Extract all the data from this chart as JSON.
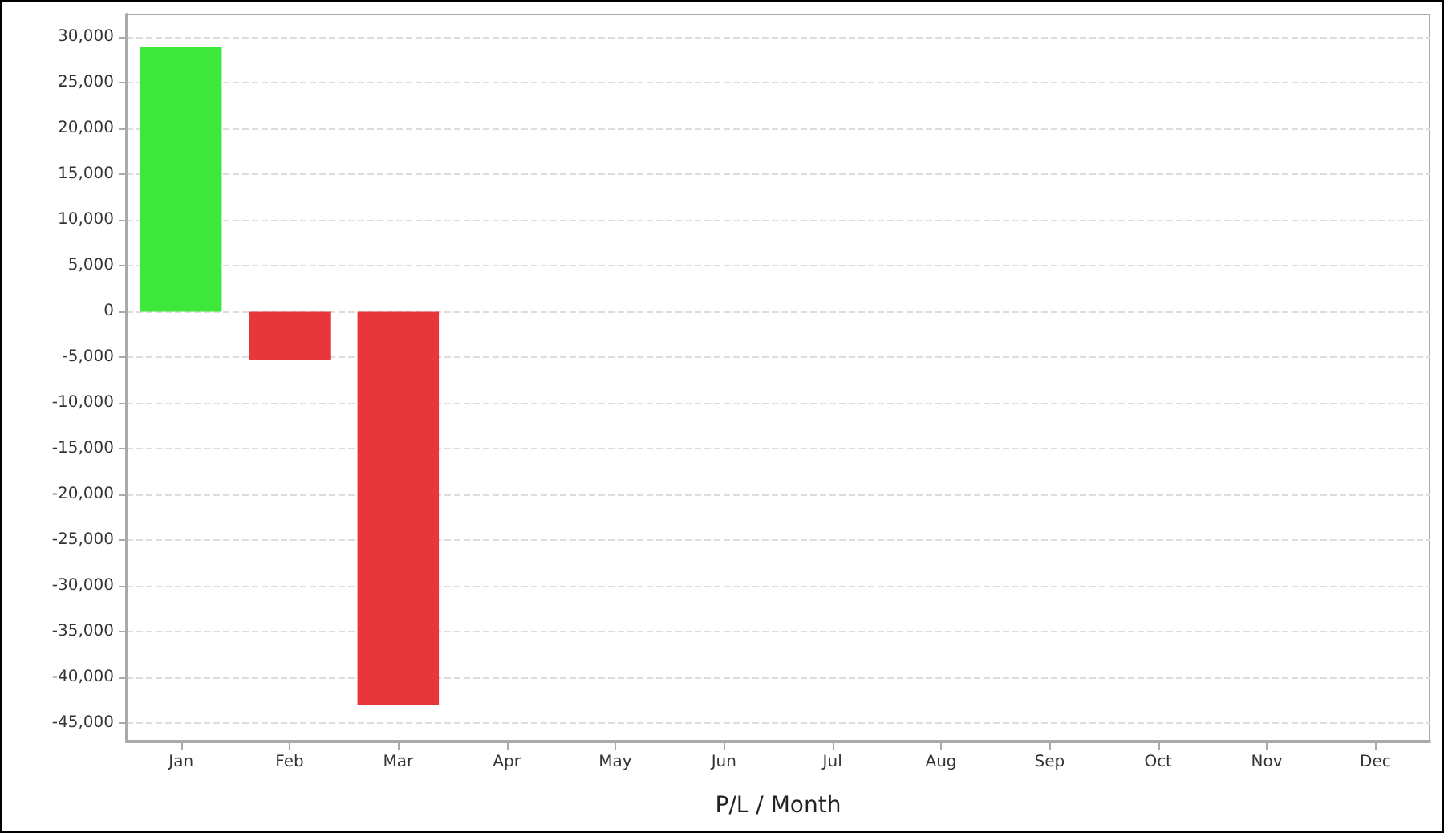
{
  "chart_data": {
    "type": "bar",
    "xlabel": "P/L / Month",
    "categories": [
      "Jan",
      "Feb",
      "Mar",
      "Apr",
      "May",
      "Jun",
      "Jul",
      "Aug",
      "Sep",
      "Oct",
      "Nov",
      "Dec"
    ],
    "values": [
      29000,
      -5300,
      -43000,
      null,
      null,
      null,
      null,
      null,
      null,
      null,
      null,
      null
    ],
    "colors": [
      "#3ee83a",
      "#e8373a",
      "#e8373a",
      null,
      null,
      null,
      null,
      null,
      null,
      null,
      null,
      null
    ],
    "ylim": [
      -47000,
      32500
    ],
    "yticks": [
      {
        "value": -45000,
        "label": "-45,000"
      },
      {
        "value": -40000,
        "label": "-40,000"
      },
      {
        "value": -35000,
        "label": "-35,000"
      },
      {
        "value": -30000,
        "label": "-30,000"
      },
      {
        "value": -25000,
        "label": "-25,000"
      },
      {
        "value": -20000,
        "label": "-20,000"
      },
      {
        "value": -15000,
        "label": "-15,000"
      },
      {
        "value": -10000,
        "label": "-10,000"
      },
      {
        "value": -5000,
        "label": "-5,000"
      },
      0,
      {
        "value": 5000,
        "label": "5,000"
      },
      {
        "value": 10000,
        "label": "10,000"
      },
      {
        "value": 15000,
        "label": "15,000"
      },
      {
        "value": 20000,
        "label": "20,000"
      },
      {
        "value": 25000,
        "label": "25,000"
      },
      {
        "value": 30000,
        "label": "30,000"
      }
    ],
    "grid": "y"
  }
}
